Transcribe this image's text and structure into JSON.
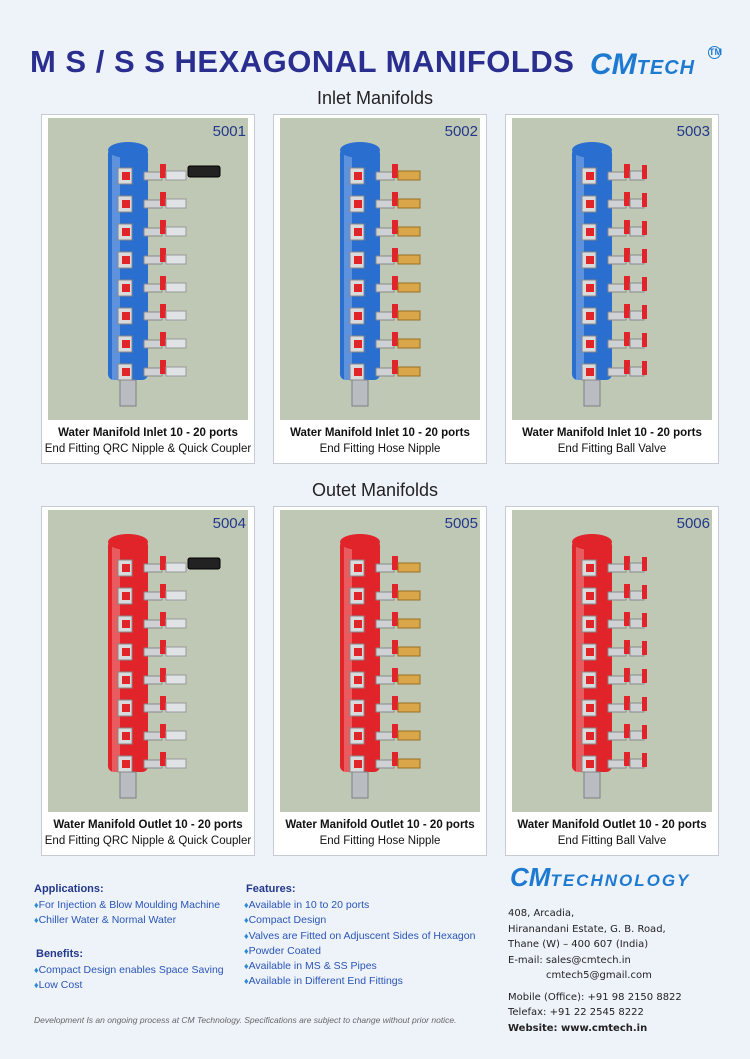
{
  "header": {
    "title": "M S / S S HEXAGONAL MANIFOLDS",
    "logo_cm": "CM",
    "logo_tech": "TECH",
    "logo_tm": "TM"
  },
  "sections": {
    "inlet": "Inlet Manifolds",
    "outlet": "Outet Manifolds"
  },
  "products": [
    {
      "code": "5001",
      "line1": "Water Manifold Inlet 10 - 20 ports",
      "line2": "End Fitting QRC Nipple  & Quick Coupler",
      "body_color": "#2a6ed0",
      "fitting": "qrc"
    },
    {
      "code": "5002",
      "line1": "Water Manifold Inlet 10 - 20 ports",
      "line2": "End Fitting Hose Nipple",
      "body_color": "#2a6ed0",
      "fitting": "hose"
    },
    {
      "code": "5003",
      "line1": "Water Manifold Inlet 10 - 20 ports",
      "line2": "End Fitting Ball Valve",
      "body_color": "#2a6ed0",
      "fitting": "valve"
    },
    {
      "code": "5004",
      "line1": "Water Manifold Outlet 10 - 20 ports",
      "line2": "End Fitting QRC Nipple  & Quick Coupler",
      "body_color": "#e0242a",
      "fitting": "qrc"
    },
    {
      "code": "5005",
      "line1": "Water Manifold Outlet 10 - 20 ports",
      "line2": "End Fitting Hose Nipple",
      "body_color": "#e0242a",
      "fitting": "hose"
    },
    {
      "code": "5006",
      "line1": "Water Manifold Outlet 10 - 20 ports",
      "line2": "End Fitting Ball Valve",
      "body_color": "#e0242a",
      "fitting": "valve"
    }
  ],
  "applications": {
    "title": "Applications:",
    "items": [
      "For Injection & Blow Moulding Machine",
      "Chiller Water & Normal Water"
    ]
  },
  "benefits": {
    "title": "Benefits:",
    "items": [
      "Compact Design enables Space Saving",
      "Low Cost"
    ]
  },
  "features": {
    "title": "Features:",
    "items": [
      "Available in 10 to 20 ports",
      "Compact Design",
      "Valves are Fitted on Adjuscent Sides of Hexagon",
      "Powder Coated",
      "Available in MS & SS Pipes",
      "Available in Different End Fittings"
    ]
  },
  "company": {
    "logo_cm": "CM",
    "logo_rest": "TECHNOLOGY",
    "address1": "408, Arcadia,",
    "address2": "Hiranandani Estate, G. B. Road,",
    "address3": "Thane (W) – 400 607 (India)",
    "email_line": "E-mail: sales@cmtech.in",
    "email2": "cmtech5@gmail.com",
    "mobile": "Mobile (Office): +91 98 2150 8822",
    "telefax": "Telefax: +91 22 2545 8222",
    "website": "Website: www.cmtech.in"
  },
  "footer": {
    "note": "Development Is an ongoing process at CM Technology. Specifications are subject to change without prior notice."
  }
}
